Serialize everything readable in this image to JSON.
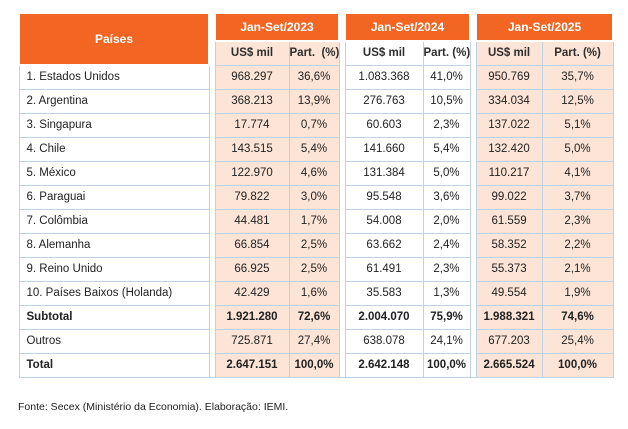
{
  "colors": {
    "header_orange": "#F26522",
    "group_shade_peach": "#FCE4D6",
    "grid_border_blue": "#BDD2E4"
  },
  "table": {
    "countries_header": "Países",
    "groups": [
      {
        "label": "Jan-Set/2023",
        "sub_value": "US$ mil",
        "sub_share": "Part.  (%)"
      },
      {
        "label": "Jan-Set/2024",
        "sub_value": "US$ mil",
        "sub_share": "Part. (%)"
      },
      {
        "label": "Jan-Set/2025",
        "sub_value": "US$ mil",
        "sub_share": "Part. (%)"
      }
    ],
    "rows": [
      {
        "name": "1. Estados Unidos",
        "bold": false,
        "values": [
          "968.297",
          "36,6%",
          "1.083.368",
          "41,0%",
          "950.769",
          "35,7%"
        ]
      },
      {
        "name": "2. Argentina",
        "bold": false,
        "values": [
          "368.213",
          "13,9%",
          "276.763",
          "10,5%",
          "334.034",
          "12,5%"
        ]
      },
      {
        "name": "3. Singapura",
        "bold": false,
        "values": [
          "17.774",
          "0,7%",
          "60.603",
          "2,3%",
          "137.022",
          "5,1%"
        ]
      },
      {
        "name": "4. Chile",
        "bold": false,
        "values": [
          "143.515",
          "5,4%",
          "141.660",
          "5,4%",
          "132.420",
          "5,0%"
        ]
      },
      {
        "name": "5. México",
        "bold": false,
        "values": [
          "122.970",
          "4,6%",
          "131.384",
          "5,0%",
          "110.217",
          "4,1%"
        ]
      },
      {
        "name": "6. Paraguai",
        "bold": false,
        "values": [
          "79.822",
          "3,0%",
          "95.548",
          "3,6%",
          "99.022",
          "3,7%"
        ]
      },
      {
        "name": "7. Colômbia",
        "bold": false,
        "values": [
          "44.481",
          "1,7%",
          "54.008",
          "2,0%",
          "61.559",
          "2,3%"
        ]
      },
      {
        "name": "8. Alemanha",
        "bold": false,
        "values": [
          "66.854",
          "2,5%",
          "63.662",
          "2,4%",
          "58.352",
          "2,2%"
        ]
      },
      {
        "name": "9. Reino Unido",
        "bold": false,
        "values": [
          "66.925",
          "2,5%",
          "61.491",
          "2,3%",
          "55.373",
          "2,1%"
        ]
      },
      {
        "name": "10. Países Baixos (Holanda)",
        "bold": false,
        "values": [
          "42.429",
          "1,6%",
          "35.583",
          "1,3%",
          "49.554",
          "1,9%"
        ]
      },
      {
        "name": "Subtotal",
        "bold": true,
        "values": [
          "1.921.280",
          "72,6%",
          "2.004.070",
          "75,9%",
          "1.988.321",
          "74,6%"
        ]
      },
      {
        "name": "Outros",
        "bold": false,
        "values": [
          "725.871",
          "27,4%",
          "638.078",
          "24,1%",
          "677.203",
          "25,4%"
        ]
      },
      {
        "name": "Total",
        "bold": true,
        "values": [
          "2.647.151",
          "100,0%",
          "2.642.148",
          "100,0%",
          "2.665.524",
          "100,0%"
        ]
      }
    ]
  },
  "footer": "Fonte: Secex (Ministério da Economia). Elaboração: IEMI."
}
